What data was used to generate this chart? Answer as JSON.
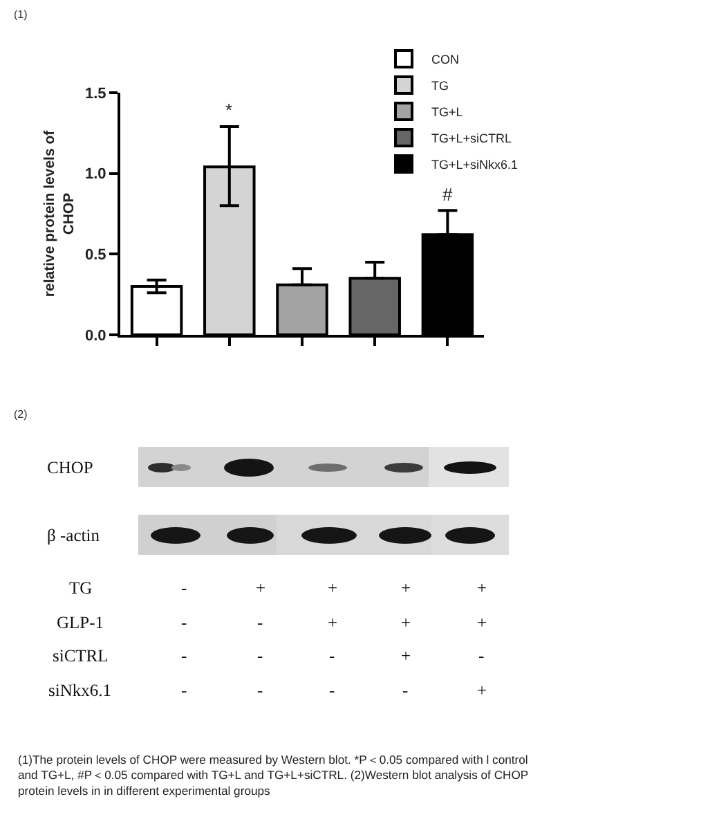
{
  "chart_data": {
    "type": "bar",
    "ylabel": "relative protein levels of CHOP",
    "categories": [
      null,
      null,
      null,
      null,
      null
    ],
    "series": [
      {
        "name": "CON",
        "color": "#ffffff",
        "values": [
          0.3,
          null,
          null,
          null,
          null
        ],
        "errors": [
          [
            0.26,
            0.34
          ],
          null,
          null,
          null,
          null
        ]
      },
      {
        "name": "TG",
        "color": "#d4d4d4",
        "values": [
          null,
          1.04,
          null,
          null,
          null
        ],
        "errors": [
          null,
          [
            0.8,
            1.29
          ],
          null,
          null,
          null
        ]
      },
      {
        "name": "TG+L",
        "color": "#a3a3a3",
        "values": [
          null,
          null,
          0.31,
          null,
          null
        ],
        "errors": [
          null,
          null,
          [
            0.31,
            0.41
          ],
          null,
          null
        ]
      },
      {
        "name": "TG+L+siCTRL",
        "color": "#666666",
        "values": [
          null,
          null,
          null,
          0.35,
          null
        ],
        "errors": [
          null,
          null,
          null,
          [
            0.35,
            0.45
          ],
          null
        ]
      },
      {
        "name": "TG+L+siNkx6.1",
        "color": "#000000",
        "values": [
          null,
          null,
          null,
          null,
          0.62
        ],
        "errors": [
          null,
          null,
          null,
          null,
          [
            0.62,
            0.77
          ]
        ]
      }
    ],
    "ylim": [
      0,
      1.5
    ],
    "yticks": [
      {
        "value": 0,
        "label": "0.0"
      },
      0.5,
      {
        "value": 1,
        "label": "1.0"
      },
      1.5
    ],
    "tick_labels": "y",
    "legend": "top right",
    "annotations": [
      {
        "text": "*",
        "y": 1.29
      },
      {
        "text": "#",
        "y": 0.77
      },
      "(1)",
      "(2)",
      "CHOP",
      "β -actin",
      "TG - + + + +",
      "GLP-1 - - + + +",
      "siCTRL - - - + -",
      "siNkx6.1 - - - - +",
      "(1)The protein levels of CHOP were measured by Western blot. *P＜0.05 compared with l control and TG+L, #P＜0.05 compared with TG+L and TG+L+siCTRL. (2)Western blot analysis of CHOP protein levels in in different experimental groups"
    ]
  }
}
